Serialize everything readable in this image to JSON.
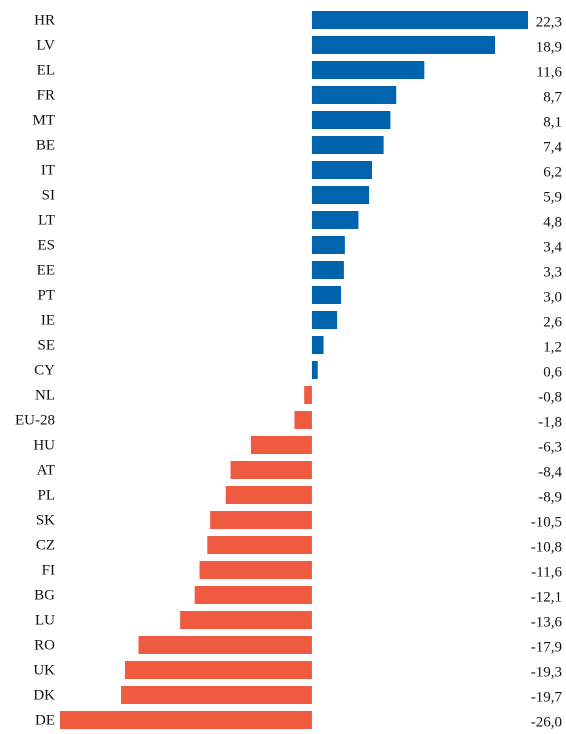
{
  "chart_data": {
    "type": "hbar",
    "categories": [
      "HR",
      "LV",
      "EL",
      "FR",
      "MT",
      "BE",
      "IT",
      "SI",
      "LT",
      "ES",
      "EE",
      "PT",
      "IE",
      "SE",
      "CY",
      "NL",
      "EU-28",
      "HU",
      "AT",
      "PL",
      "SK",
      "CZ",
      "FI",
      "BG",
      "LU",
      "RO",
      "UK",
      "DK",
      "DE"
    ],
    "values": [
      22.3,
      18.9,
      11.6,
      8.7,
      8.1,
      7.4,
      6.2,
      5.9,
      4.8,
      3.4,
      3.3,
      3.0,
      2.6,
      1.2,
      0.6,
      -0.8,
      -1.8,
      -6.3,
      -8.4,
      -8.9,
      -10.5,
      -10.8,
      -11.6,
      -12.1,
      -13.6,
      -17.9,
      -19.3,
      -19.7,
      -26.0
    ],
    "value_labels": [
      "22,3",
      "18,9",
      "11,6",
      "8,7",
      "8,1",
      "7,4",
      "6,2",
      "5,9",
      "4,8",
      "3,4",
      "3,3",
      "3,0",
      "2,6",
      "1,2",
      "0,6",
      "-0,8",
      "-1,8",
      "-6,3",
      "-8,4",
      "-8,9",
      "-10,5",
      "-10,8",
      "-11,6",
      "-12,1",
      "-13,6",
      "-17,9",
      "-19,3",
      "-19,7",
      "-26,0"
    ],
    "color": "#0063ad",
    "negative_color": "#ee5b40"
  }
}
